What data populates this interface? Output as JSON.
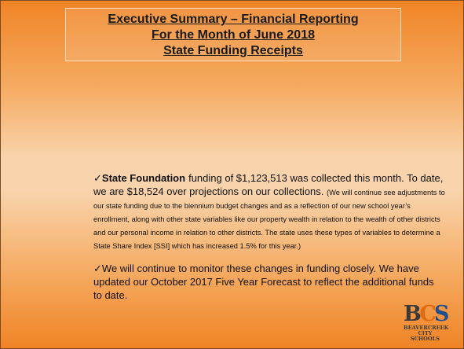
{
  "title": {
    "lines": [
      "Executive Summary – Financial Reporting",
      "For the Month of June 2018",
      "State Funding Receipts"
    ]
  },
  "bullets": [
    {
      "check": "✓",
      "bold": "State Foundation",
      "text": "funding of $1,123,513  was collected this month.  To date, we are $18,524 over projections on our collections.",
      "note": "(We will continue see adjustments to our state funding due to the biennium budget changes and as a reflection of our new school year’s enrollment, along with other state variables like our property wealth in relation to the wealth of other districts and our personal income in relation to other districts.  The state uses these types of variables to determine a State Share Index [SSI] which has increased 1.5% for this year.)"
    },
    {
      "check": "✓",
      "text": "We will continue to monitor these changes in funding closely.  We have updated our October 2017 Five Year Forecast to reflect the additional funds to date."
    }
  ],
  "logo": {
    "letters": [
      "B",
      "C",
      "S"
    ],
    "name_lines": [
      "BEAVERCREEK",
      "CITY SCHOOLS"
    ]
  }
}
